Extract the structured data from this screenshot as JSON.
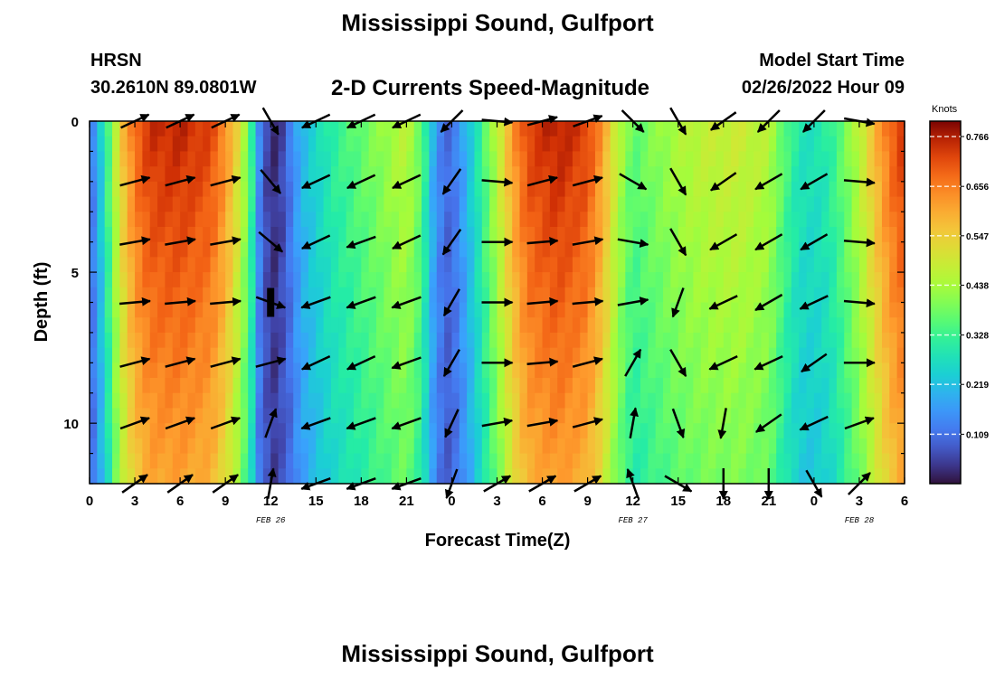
{
  "header": {
    "title": "Mississippi Sound, Gulfport",
    "station": "HRSN",
    "coords": "30.2610N  89.0801W",
    "subtitle": "2-D Currents Speed-Magnitude",
    "model_start_label": "Model Start Time",
    "model_start_value": "02/26/2022 Hour 09"
  },
  "footer": {
    "title2": "Mississippi Sound, Gulfport"
  },
  "chart_data": {
    "type": "heatmap",
    "title": "2-D Currents Speed-Magnitude",
    "xlabel": "Forecast Time(Z)",
    "ylabel": "Depth (ft)",
    "x_range_hours": [
      0,
      54
    ],
    "y_range_ft": [
      0,
      12
    ],
    "x_ticks": [
      {
        "h": 0,
        "label": "0"
      },
      {
        "h": 3,
        "label": "3"
      },
      {
        "h": 6,
        "label": "6"
      },
      {
        "h": 9,
        "label": "9"
      },
      {
        "h": 12,
        "label": "12"
      },
      {
        "h": 15,
        "label": "15"
      },
      {
        "h": 18,
        "label": "18"
      },
      {
        "h": 21,
        "label": "21"
      },
      {
        "h": 24,
        "label": "0"
      },
      {
        "h": 27,
        "label": "3"
      },
      {
        "h": 30,
        "label": "6"
      },
      {
        "h": 33,
        "label": "9"
      },
      {
        "h": 36,
        "label": "12"
      },
      {
        "h": 39,
        "label": "15"
      },
      {
        "h": 42,
        "label": "18"
      },
      {
        "h": 45,
        "label": "21"
      },
      {
        "h": 48,
        "label": "0"
      },
      {
        "h": 51,
        "label": "3"
      },
      {
        "h": 54,
        "label": "6"
      }
    ],
    "date_labels": [
      {
        "h": 12,
        "label": "FEB 26"
      },
      {
        "h": 36,
        "label": "FEB 27"
      },
      {
        "h": 51,
        "label": "FEB 28"
      }
    ],
    "y_ticks": [
      {
        "d": 0,
        "label": "0"
      },
      {
        "d": 5,
        "label": "5"
      },
      {
        "d": 10,
        "label": "10"
      }
    ],
    "colorbar": {
      "unit": "Knots",
      "min": 0.0,
      "max": 0.8,
      "tick_values": [
        0.109,
        0.219,
        0.328,
        0.438,
        0.547,
        0.656,
        0.766
      ],
      "tick_labels": [
        "0.109",
        "0.219",
        "0.328",
        "0.438",
        "0.547",
        "0.656",
        "0.766"
      ]
    },
    "speed_profile": [
      {
        "h": 0,
        "v": 0.09
      },
      {
        "h": 0.5,
        "v": 0.18
      },
      {
        "h": 1,
        "v": 0.28
      },
      {
        "h": 1.5,
        "v": 0.4
      },
      {
        "h": 2,
        "v": 0.52
      },
      {
        "h": 3,
        "v": 0.66
      },
      {
        "h": 4,
        "v": 0.72
      },
      {
        "h": 6,
        "v": 0.73
      },
      {
        "h": 8,
        "v": 0.7
      },
      {
        "h": 9,
        "v": 0.62
      },
      {
        "h": 10,
        "v": 0.48
      },
      {
        "h": 10.7,
        "v": 0.33
      },
      {
        "h": 11.3,
        "v": 0.12
      },
      {
        "h": 12,
        "v": 0.02
      },
      {
        "h": 12.7,
        "v": 0.05
      },
      {
        "h": 13.3,
        "v": 0.12
      },
      {
        "h": 14,
        "v": 0.2
      },
      {
        "h": 15,
        "v": 0.25
      },
      {
        "h": 16,
        "v": 0.3
      },
      {
        "h": 18,
        "v": 0.36
      },
      {
        "h": 20,
        "v": 0.42
      },
      {
        "h": 21,
        "v": 0.45
      },
      {
        "h": 22,
        "v": 0.36
      },
      {
        "h": 22.7,
        "v": 0.2
      },
      {
        "h": 23.5,
        "v": 0.1
      },
      {
        "h": 24,
        "v": 0.1
      },
      {
        "h": 25,
        "v": 0.2
      },
      {
        "h": 26,
        "v": 0.32
      },
      {
        "h": 27,
        "v": 0.45
      },
      {
        "h": 28,
        "v": 0.6
      },
      {
        "h": 29,
        "v": 0.7
      },
      {
        "h": 31,
        "v": 0.74
      },
      {
        "h": 33,
        "v": 0.7
      },
      {
        "h": 34,
        "v": 0.6
      },
      {
        "h": 35,
        "v": 0.45
      },
      {
        "h": 36,
        "v": 0.35
      },
      {
        "h": 37,
        "v": 0.38
      },
      {
        "h": 39,
        "v": 0.43
      },
      {
        "h": 41,
        "v": 0.46
      },
      {
        "h": 43,
        "v": 0.47
      },
      {
        "h": 45,
        "v": 0.44
      },
      {
        "h": 46,
        "v": 0.35
      },
      {
        "h": 47,
        "v": 0.28
      },
      {
        "h": 48,
        "v": 0.27
      },
      {
        "h": 49,
        "v": 0.3
      },
      {
        "h": 50,
        "v": 0.37
      },
      {
        "h": 51,
        "v": 0.45
      },
      {
        "h": 52,
        "v": 0.56
      },
      {
        "h": 53,
        "v": 0.66
      },
      {
        "h": 54,
        "v": 0.72
      }
    ],
    "arrow_depths_ft": [
      0,
      2,
      4,
      6,
      8,
      10,
      12
    ],
    "arrow_times_h": [
      3,
      6,
      9,
      12,
      15,
      18,
      21,
      24,
      27,
      30,
      33,
      36,
      39,
      42,
      45,
      48,
      51
    ],
    "arrow_directions_deg": [
      [
        25,
        25,
        25,
        300,
        205,
        205,
        205,
        225,
        355,
        15,
        20,
        315,
        300,
        215,
        225,
        225,
        350
      ],
      [
        15,
        15,
        15,
        310,
        205,
        205,
        205,
        235,
        355,
        15,
        15,
        330,
        300,
        215,
        210,
        210,
        355
      ],
      [
        10,
        10,
        10,
        320,
        205,
        200,
        205,
        235,
        0,
        5,
        10,
        350,
        300,
        210,
        210,
        210,
        355
      ],
      [
        5,
        5,
        5,
        340,
        200,
        200,
        200,
        240,
        0,
        5,
        5,
        10,
        250,
        205,
        210,
        205,
        355
      ],
      [
        15,
        15,
        15,
        15,
        205,
        205,
        200,
        240,
        0,
        5,
        15,
        60,
        300,
        205,
        205,
        215,
        0
      ],
      [
        20,
        20,
        20,
        70,
        200,
        200,
        200,
        245,
        10,
        10,
        15,
        80,
        290,
        260,
        215,
        205,
        20
      ],
      [
        35,
        35,
        35,
        80,
        200,
        200,
        200,
        250,
        30,
        30,
        30,
        110,
        330,
        270,
        270,
        300,
        45
      ]
    ],
    "depth_marker": {
      "h": 12,
      "d": 6,
      "label": ""
    }
  }
}
